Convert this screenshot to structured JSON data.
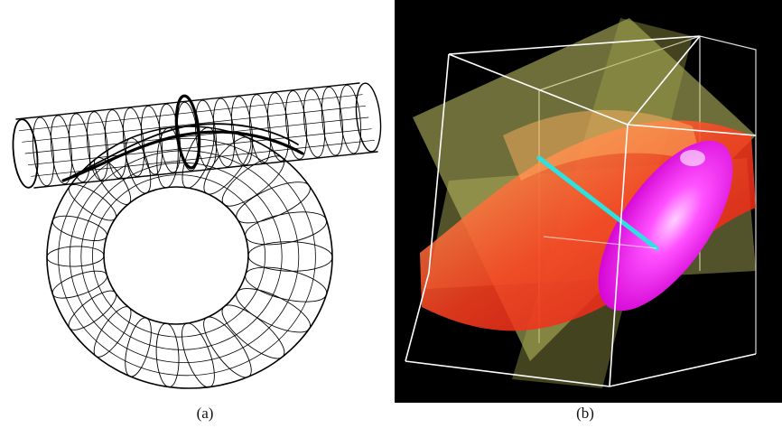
{
  "figure": {
    "panels": [
      {
        "caption": "(a)",
        "style": "wireframe line drawing",
        "line_color": "#000000",
        "background": "#ffffff"
      },
      {
        "caption": "(b)",
        "style": "rendered 3D surfaces in box",
        "background": "#000000",
        "colors": {
          "planes": "#c8c86a",
          "surface": "#ff2a1a",
          "inner_surface": "#ff00ff",
          "curve": "#2ee0e0",
          "box_edges": "#ffffff"
        }
      }
    ]
  }
}
